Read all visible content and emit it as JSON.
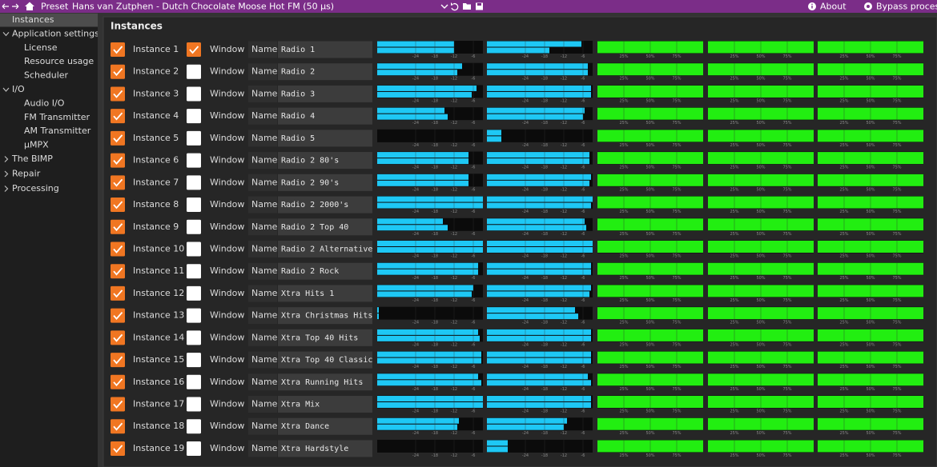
{
  "topbar": {
    "preset_label": "Preset",
    "preset_name": "Hans van Zutphen - Dutch Chocolate Moose Hot FM (50 µs)",
    "about": "About",
    "bypass": "Bypass processing"
  },
  "sidebar": [
    {
      "label": "Instances",
      "level": 0,
      "selected": true
    },
    {
      "label": "Application settings",
      "level": 0,
      "expandable": true,
      "expanded": true
    },
    {
      "label": "License",
      "level": 1
    },
    {
      "label": "Resource usage",
      "level": 1
    },
    {
      "label": "Scheduler",
      "level": 1
    },
    {
      "label": "I/O",
      "level": 0,
      "expandable": true,
      "expanded": true
    },
    {
      "label": "Audio I/O",
      "level": 1
    },
    {
      "label": "FM Transmitter",
      "level": 1
    },
    {
      "label": "AM Transmitter",
      "level": 1
    },
    {
      "label": "µMPX",
      "level": 1
    },
    {
      "label": "The BIMP",
      "level": 0,
      "expandable": true,
      "expanded": false
    },
    {
      "label": "Repair",
      "level": 0,
      "expandable": true,
      "expanded": false
    },
    {
      "label": "Processing",
      "level": 0,
      "expandable": true,
      "expanded": false
    }
  ],
  "panel_title": "Instances",
  "level_meter": {
    "range": [
      -36,
      -3
    ],
    "ticks": [
      -24,
      -18,
      -12,
      -6
    ],
    "color": "#1ec8f5"
  },
  "percent_meter": {
    "range": [
      0,
      100
    ],
    "ticks": [
      {
        "value": 25,
        "label": "25%"
      },
      {
        "value": 50,
        "label": "50%"
      },
      {
        "value": 75,
        "label": "75%"
      }
    ],
    "color": "#22ee11"
  },
  "rows": [
    {
      "instance": "Instance 1",
      "enabled": true,
      "window_label": "Window",
      "window": true,
      "name_label": "Name",
      "name": "Radio 1",
      "levels_a": [
        -12,
        -12
      ],
      "levels_b": [
        -6.5,
        -16.5
      ],
      "percent": [
        100,
        100,
        100
      ]
    },
    {
      "instance": "Instance 2",
      "enabled": true,
      "window_label": "Window",
      "window": false,
      "name_label": "Name",
      "name": "Radio 2",
      "levels_a": [
        -9.5,
        -11
      ],
      "levels_b": [
        -4.5,
        -4.5
      ],
      "percent": [
        100,
        100,
        100
      ]
    },
    {
      "instance": "Instance 3",
      "enabled": true,
      "window_label": "Window",
      "window": false,
      "name_label": "Name",
      "name": "Radio 3",
      "levels_a": [
        -5,
        -6.5
      ],
      "levels_b": [
        -3.5,
        -3.5
      ],
      "percent": [
        100,
        100,
        100
      ]
    },
    {
      "instance": "Instance 4",
      "enabled": true,
      "window_label": "Window",
      "window": false,
      "name_label": "Name",
      "name": "Radio 4",
      "levels_a": [
        -15,
        -14
      ],
      "levels_b": [
        -5.5,
        -6
      ],
      "percent": [
        100,
        100,
        100
      ]
    },
    {
      "instance": "Instance 5",
      "enabled": true,
      "window_label": "Window",
      "window": false,
      "name_label": "Name",
      "name": "Radio 5",
      "levels_a": [
        -36,
        -36
      ],
      "levels_b": [
        -31.5,
        -31.5
      ],
      "percent": [
        100,
        100,
        100
      ]
    },
    {
      "instance": "Instance 6",
      "enabled": true,
      "window_label": "Window",
      "window": false,
      "name_label": "Name",
      "name": "Radio 2 80's",
      "levels_a": [
        -7.5,
        -7.5
      ],
      "levels_b": [
        -4,
        -4
      ],
      "percent": [
        100,
        100,
        100
      ]
    },
    {
      "instance": "Instance 7",
      "enabled": true,
      "window_label": "Window",
      "window": false,
      "name_label": "Name",
      "name": "Radio 2 90's",
      "levels_a": [
        -7.5,
        -7.5
      ],
      "levels_b": [
        -3.5,
        -4
      ],
      "percent": [
        100,
        100,
        100
      ]
    },
    {
      "instance": "Instance 8",
      "enabled": true,
      "window_label": "Window",
      "window": false,
      "name_label": "Name",
      "name": "Radio 2 2000's",
      "levels_a": [
        -3,
        -3
      ],
      "levels_b": [
        -3,
        -3.5
      ],
      "percent": [
        100,
        100,
        100
      ]
    },
    {
      "instance": "Instance 9",
      "enabled": true,
      "window_label": "Window",
      "window": false,
      "name_label": "Name",
      "name": "Radio 2 Top 40",
      "levels_a": [
        -15.5,
        -14
      ],
      "levels_b": [
        -5.5,
        -5
      ],
      "percent": [
        100,
        100,
        100
      ]
    },
    {
      "instance": "Instance 10",
      "enabled": true,
      "window_label": "Window",
      "window": false,
      "name_label": "Name",
      "name": "Radio 2 Alternative",
      "levels_a": [
        -3,
        -3
      ],
      "levels_b": [
        -3,
        -3
      ],
      "percent": [
        100,
        100,
        100
      ]
    },
    {
      "instance": "Instance 11",
      "enabled": true,
      "window_label": "Window",
      "window": false,
      "name_label": "Name",
      "name": "Radio 2 Rock",
      "levels_a": [
        -4.5,
        -4.5
      ],
      "levels_b": [
        -3.5,
        -3.5
      ],
      "percent": [
        100,
        100,
        100
      ]
    },
    {
      "instance": "Instance 12",
      "enabled": true,
      "window_label": "Window",
      "window": false,
      "name_label": "Name",
      "name": "Xtra Hits 1",
      "levels_a": [
        -6,
        -6.5
      ],
      "levels_b": [
        -3.5,
        -4
      ],
      "percent": [
        100,
        100,
        100
      ]
    },
    {
      "instance": "Instance 13",
      "enabled": true,
      "window_label": "Window",
      "window": false,
      "name_label": "Name",
      "name": "Xtra Christmas Hits",
      "levels_a": [
        -35.5,
        -35.5
      ],
      "levels_b": [
        -8.5,
        -7.5
      ],
      "percent": [
        100,
        100,
        100
      ]
    },
    {
      "instance": "Instance 14",
      "enabled": true,
      "window_label": "Window",
      "window": false,
      "name_label": "Name",
      "name": "Xtra Top 40 Hits",
      "levels_a": [
        -4.5,
        -4
      ],
      "levels_b": [
        -3.5,
        -3.5
      ],
      "percent": [
        100,
        100,
        100
      ]
    },
    {
      "instance": "Instance 15",
      "enabled": true,
      "window_label": "Window",
      "window": false,
      "name_label": "Name",
      "name": "Xtra Top 40 Classic",
      "levels_a": [
        -3.5,
        -3.5
      ],
      "levels_b": [
        -3.5,
        -3.5
      ],
      "percent": [
        100,
        100,
        100
      ]
    },
    {
      "instance": "Instance 16",
      "enabled": true,
      "window_label": "Window",
      "window": false,
      "name_label": "Name",
      "name": "Xtra Running Hits",
      "levels_a": [
        -4.5,
        -3.5
      ],
      "levels_b": [
        -4.5,
        -3.5
      ],
      "percent": [
        100,
        100,
        100
      ]
    },
    {
      "instance": "Instance 17",
      "enabled": true,
      "window_label": "Window",
      "window": false,
      "name_label": "Name",
      "name": "Xtra Mix",
      "levels_a": [
        -3,
        -3
      ],
      "levels_b": [
        -3.5,
        -3.5
      ],
      "percent": [
        100,
        100,
        100
      ]
    },
    {
      "instance": "Instance 18",
      "enabled": true,
      "window_label": "Window",
      "window": false,
      "name_label": "Name",
      "name": "Xtra Dance",
      "levels_a": [
        -10.5,
        -11
      ],
      "levels_b": [
        -11,
        -12
      ],
      "percent": [
        100,
        100,
        100
      ]
    },
    {
      "instance": "Instance 19",
      "enabled": true,
      "window_label": "Window",
      "window": false,
      "name_label": "Name",
      "name": "Xtra Hardstyle",
      "levels_a": [
        -36,
        -36
      ],
      "levels_b": [
        -29.5,
        -29.5
      ],
      "percent": [
        100,
        100,
        100
      ]
    }
  ]
}
